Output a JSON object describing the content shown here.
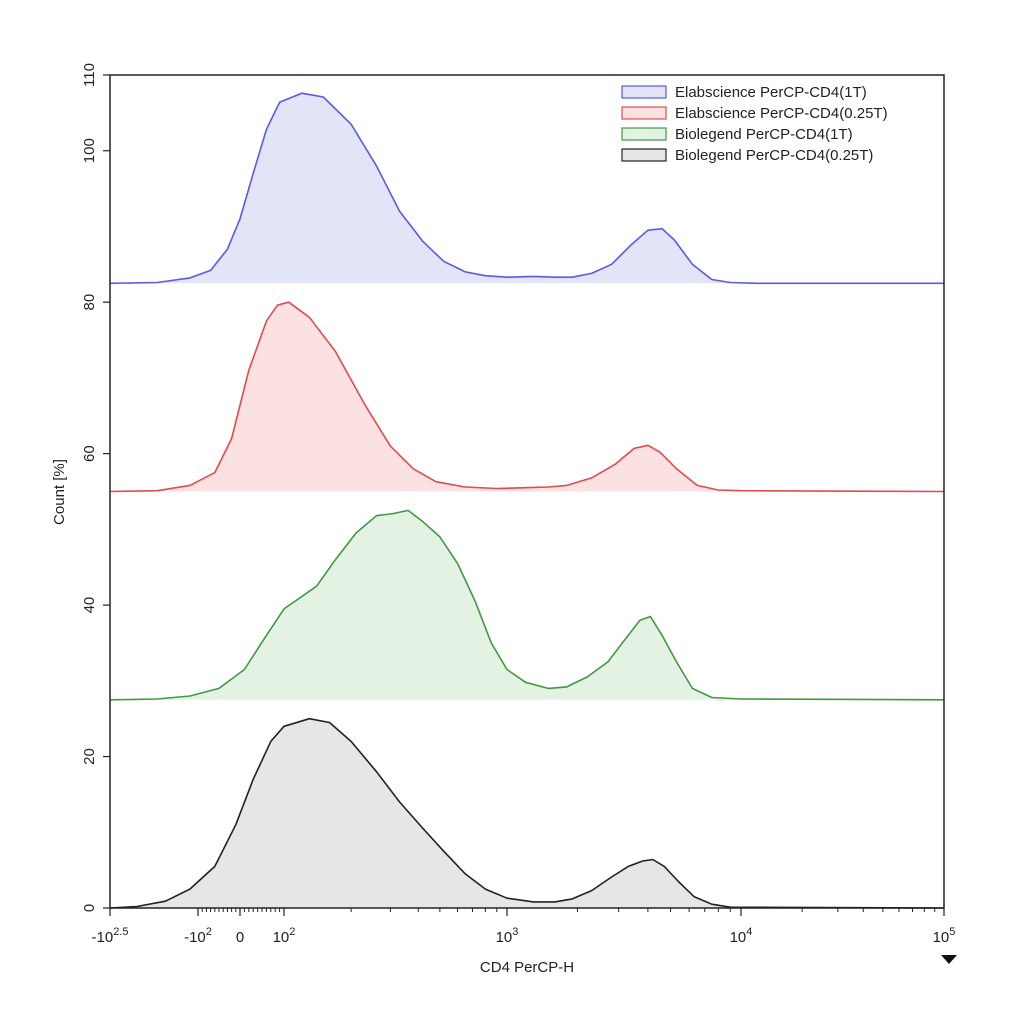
{
  "chart_data": {
    "type": "area",
    "title": "",
    "xlabel": "CD4 PerCP-H",
    "ylabel": "Count [%]",
    "x_scale": "biexponential",
    "y_range": [
      0,
      110
    ],
    "y_ticks": [
      0,
      20,
      40,
      60,
      80,
      100,
      110
    ],
    "x_ticks": [
      {
        "pre": "-10",
        "exp": "2.5",
        "value": -316
      },
      {
        "pre": "-10",
        "exp": "2",
        "value": -100
      },
      {
        "pre": "0",
        "exp": "",
        "value": 0
      },
      {
        "pre": "10",
        "exp": "2",
        "value": 100
      },
      {
        "pre": "10",
        "exp": "3",
        "value": 1000
      },
      {
        "pre": "10",
        "exp": "4",
        "value": 10000
      },
      {
        "pre": "10",
        "exp": "5",
        "value": 100000
      }
    ],
    "legend": {
      "position": "top-right",
      "entries": [
        {
          "label": "Elabscience PerCP-CD4(1T)",
          "stroke": "#5a5ae6",
          "fill": "#e3e4f7"
        },
        {
          "label": "Elabscience PerCP-CD4(0.25T)",
          "stroke": "#e24b4b",
          "fill": "#fbe1e1"
        },
        {
          "label": "Biolegend PerCP-CD4(1T)",
          "stroke": "#3f9a3f",
          "fill": "#e4f2e3"
        },
        {
          "label": "Biolegend PerCP-CD4(0.25T)",
          "stroke": "#222222",
          "fill": "#e6e6e6"
        }
      ]
    },
    "series": [
      {
        "name": "Elabscience PerCP-CD4(1T)",
        "baseline": 82.5,
        "stroke": "#5a5ae6",
        "fill": "#e3e4f7",
        "points": [
          [
            -316,
            82.5
          ],
          [
            -200,
            82.6
          ],
          [
            -120,
            83.2
          ],
          [
            -70,
            84.2
          ],
          [
            -30,
            87
          ],
          [
            0,
            91
          ],
          [
            30,
            97
          ],
          [
            60,
            102.8
          ],
          [
            90,
            106.4
          ],
          [
            120,
            107.6
          ],
          [
            150,
            107.1
          ],
          [
            200,
            103.5
          ],
          [
            260,
            98
          ],
          [
            330,
            92
          ],
          [
            420,
            88
          ],
          [
            520,
            85.4
          ],
          [
            650,
            84
          ],
          [
            800,
            83.5
          ],
          [
            1000,
            83.3
          ],
          [
            1300,
            83.4
          ],
          [
            1600,
            83.3
          ],
          [
            1900,
            83.3
          ],
          [
            2300,
            83.8
          ],
          [
            2800,
            85
          ],
          [
            3400,
            87.6
          ],
          [
            4000,
            89.5
          ],
          [
            4600,
            89.7
          ],
          [
            5200,
            88.2
          ],
          [
            6200,
            85
          ],
          [
            7500,
            83
          ],
          [
            9000,
            82.6
          ],
          [
            12000,
            82.5
          ],
          [
            100000,
            82.5
          ]
        ]
      },
      {
        "name": "Elabscience PerCP-CD4(0.25T)",
        "baseline": 55,
        "stroke": "#e24b4b",
        "fill": "#fbe1e1",
        "points": [
          [
            -316,
            55
          ],
          [
            -200,
            55.1
          ],
          [
            -120,
            55.8
          ],
          [
            -60,
            57.5
          ],
          [
            -20,
            62
          ],
          [
            20,
            71
          ],
          [
            60,
            77.5
          ],
          [
            85,
            79.6
          ],
          [
            105,
            80
          ],
          [
            130,
            78
          ],
          [
            170,
            73.5
          ],
          [
            230,
            66.5
          ],
          [
            300,
            61
          ],
          [
            380,
            58
          ],
          [
            480,
            56.3
          ],
          [
            650,
            55.6
          ],
          [
            900,
            55.4
          ],
          [
            1200,
            55.5
          ],
          [
            1500,
            55.6
          ],
          [
            1800,
            55.8
          ],
          [
            2300,
            56.8
          ],
          [
            2900,
            58.6
          ],
          [
            3500,
            60.7
          ],
          [
            4000,
            61.1
          ],
          [
            4500,
            60.2
          ],
          [
            5300,
            58
          ],
          [
            6500,
            55.8
          ],
          [
            8000,
            55.2
          ],
          [
            10000,
            55.1
          ],
          [
            100000,
            55
          ]
        ]
      },
      {
        "name": "Biolegend PerCP-CD4(1T)",
        "baseline": 27.5,
        "stroke": "#3f9a3f",
        "fill": "#e4f2e3",
        "points": [
          [
            -316,
            27.5
          ],
          [
            -200,
            27.6
          ],
          [
            -120,
            28
          ],
          [
            -50,
            29
          ],
          [
            10,
            31.5
          ],
          [
            60,
            36
          ],
          [
            100,
            39.5
          ],
          [
            140,
            42.5
          ],
          [
            170,
            46
          ],
          [
            210,
            49.5
          ],
          [
            260,
            51.8
          ],
          [
            310,
            52.1
          ],
          [
            360,
            52.5
          ],
          [
            420,
            51
          ],
          [
            500,
            49
          ],
          [
            600,
            45.5
          ],
          [
            720,
            40.5
          ],
          [
            850,
            35
          ],
          [
            1000,
            31.5
          ],
          [
            1200,
            29.8
          ],
          [
            1500,
            29
          ],
          [
            1800,
            29.2
          ],
          [
            2200,
            30.5
          ],
          [
            2700,
            32.5
          ],
          [
            3200,
            35.5
          ],
          [
            3700,
            38
          ],
          [
            4100,
            38.5
          ],
          [
            4600,
            36
          ],
          [
            5300,
            32.5
          ],
          [
            6200,
            29
          ],
          [
            7500,
            27.8
          ],
          [
            10000,
            27.6
          ],
          [
            100000,
            27.5
          ]
        ]
      },
      {
        "name": "Biolegend PerCP-CD4(0.25T)",
        "baseline": 0,
        "stroke": "#222222",
        "fill": "#e6e6e6",
        "points": [
          [
            -316,
            0
          ],
          [
            -250,
            0.2
          ],
          [
            -180,
            0.9
          ],
          [
            -120,
            2.5
          ],
          [
            -60,
            5.5
          ],
          [
            -10,
            11
          ],
          [
            30,
            17
          ],
          [
            70,
            22
          ],
          [
            100,
            24
          ],
          [
            130,
            25
          ],
          [
            160,
            24.5
          ],
          [
            200,
            22
          ],
          [
            260,
            18
          ],
          [
            330,
            14
          ],
          [
            420,
            10.5
          ],
          [
            520,
            7.5
          ],
          [
            650,
            4.5
          ],
          [
            800,
            2.5
          ],
          [
            1000,
            1.3
          ],
          [
            1300,
            0.8
          ],
          [
            1600,
            0.8
          ],
          [
            1900,
            1.2
          ],
          [
            2300,
            2.3
          ],
          [
            2800,
            4.1
          ],
          [
            3300,
            5.5
          ],
          [
            3800,
            6.2
          ],
          [
            4200,
            6.4
          ],
          [
            4700,
            5.5
          ],
          [
            5400,
            3.5
          ],
          [
            6300,
            1.5
          ],
          [
            7500,
            0.5
          ],
          [
            9000,
            0.1
          ],
          [
            100000,
            0
          ]
        ]
      }
    ]
  }
}
